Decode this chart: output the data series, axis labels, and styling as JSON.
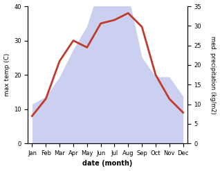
{
  "months": [
    "Jan",
    "Feb",
    "Mar",
    "Apr",
    "May",
    "Jun",
    "Jul",
    "Aug",
    "Sep",
    "Oct",
    "Nov",
    "Dec"
  ],
  "month_indices": [
    0,
    1,
    2,
    3,
    4,
    5,
    6,
    7,
    8,
    9,
    10,
    11
  ],
  "temp": [
    8,
    13,
    24,
    30,
    28,
    35,
    36,
    38,
    34,
    20,
    13,
    9
  ],
  "precip_kg": [
    10,
    12,
    17,
    24,
    30,
    41,
    35,
    38,
    22,
    17,
    17,
    12
  ],
  "temp_color": "#c0392b",
  "precip_fill_color": "#b0b8e8",
  "temp_ylim": [
    0,
    40
  ],
  "precip_ylim": [
    0,
    35
  ],
  "temp_yticks": [
    0,
    10,
    20,
    30,
    40
  ],
  "precip_yticks": [
    0,
    5,
    10,
    15,
    20,
    25,
    30,
    35
  ],
  "xlabel": "date (month)",
  "ylabel_left": "max temp (C)",
  "ylabel_right": "med. precipitation (kg/m2)",
  "background_color": "#ffffff",
  "temp_linewidth": 2.0
}
